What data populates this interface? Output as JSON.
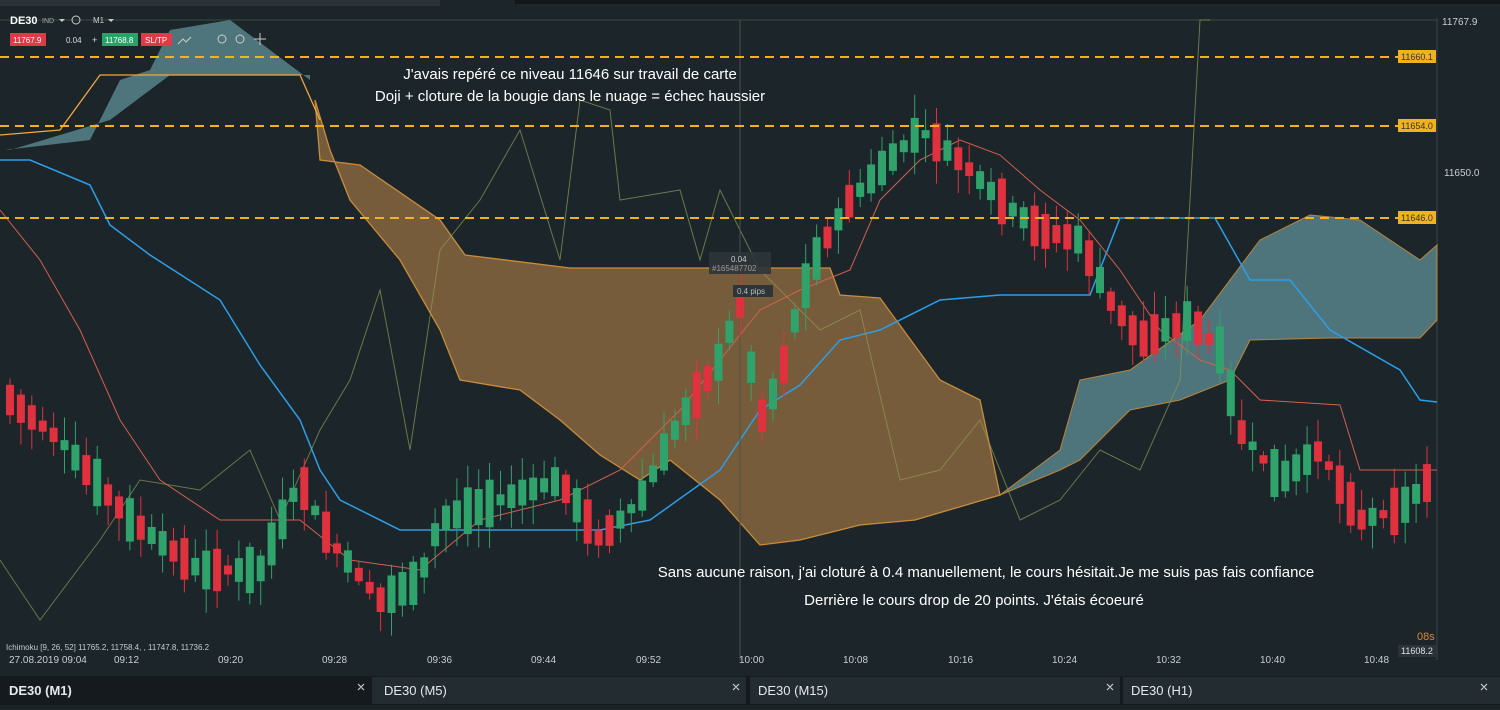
{
  "header": {
    "symbol": "DE30",
    "market": "IND",
    "timeframe": "M1",
    "bid": "11767.9",
    "spread": "0.04",
    "ask": "11768.8",
    "sltp": "SL/TP"
  },
  "price_labels": [
    "11767.9",
    "11660.1",
    "11654.0",
    "11650.0",
    "11646.0",
    "11608.2"
  ],
  "annotations": {
    "top_line1": "J'avais repéré ce niveau 11646 sur travail de carte",
    "top_line2": "Doji + cloture de la bougie dans le nuage = échec haussier",
    "bottom_line1": "Sans aucune raison, j'ai cloturé à 0.4 manuellement, le cours hésitait.Je me suis pas fais confiance",
    "bottom_line2": "Derrière le cours drop de 20 points. J'étais écoeuré"
  },
  "order": {
    "volume": "0.04",
    "ticket": "#165487702",
    "pips": "0.4 pips"
  },
  "indicator": "Ichimoku [9, 26, 52] 11765.2, 11758.4, , 11747.8, 11736.2",
  "countdown": "08s",
  "time_labels": [
    "27.08.2019 09:04",
    "09:12",
    "09:20",
    "09:28",
    "09:36",
    "09:44",
    "09:52",
    "10:00",
    "10:08",
    "10:16",
    "10:24",
    "10:32",
    "10:40",
    "10:48"
  ],
  "tabs": [
    "DE30 (M1)",
    "DE30 (M5)",
    "DE30 (M15)",
    "DE30 (H1)"
  ]
}
